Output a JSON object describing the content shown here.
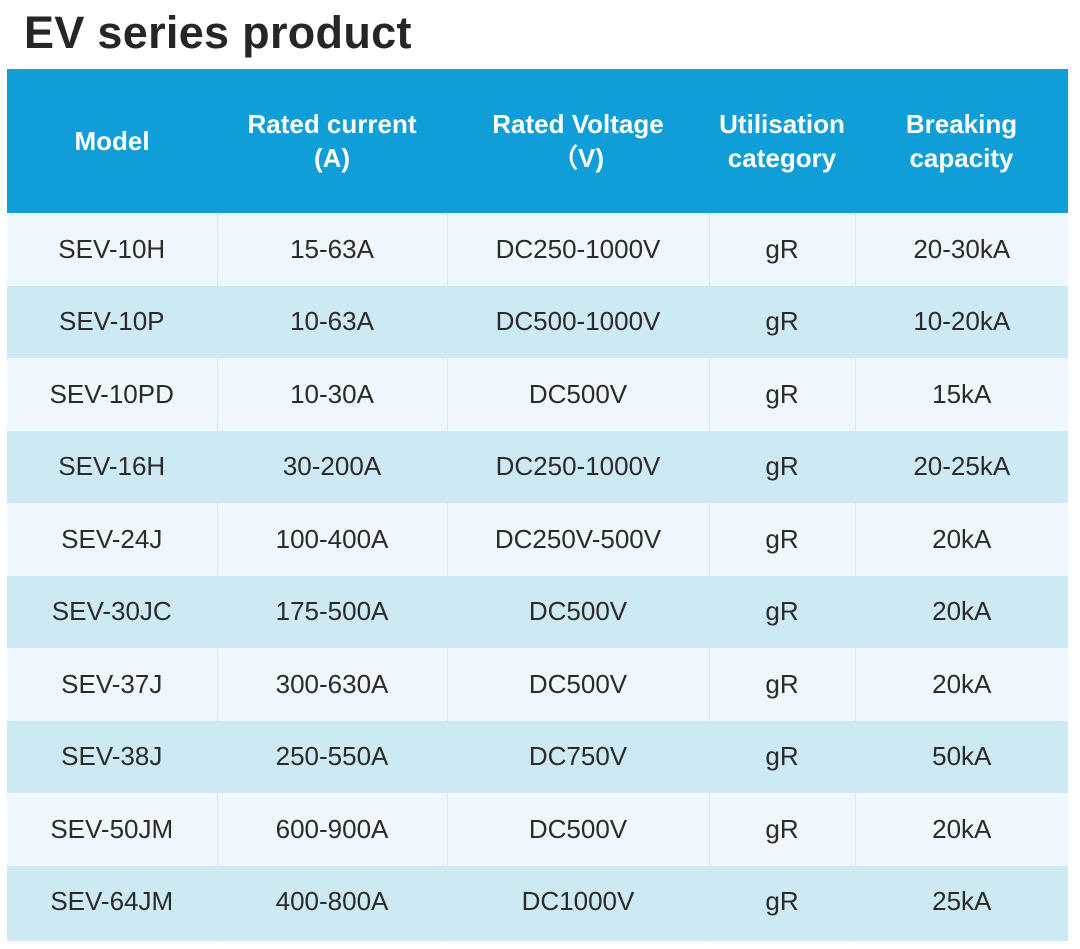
{
  "title": "EV series product",
  "table": {
    "headers": [
      {
        "line1": "Model",
        "line2": ""
      },
      {
        "line1": "Rated current",
        "line2": "(A)"
      },
      {
        "line1": "Rated Voltage",
        "line2": "（V)"
      },
      {
        "line1": "Utilisation",
        "line2": "category"
      },
      {
        "line1": "Breaking",
        "line2": "capacity"
      }
    ],
    "rows": [
      [
        "SEV-10H",
        "15-63A",
        "DC250-1000V",
        "gR",
        "20-30kA"
      ],
      [
        "SEV-10P",
        "10-63A",
        "DC500-1000V",
        "gR",
        "10-20kA"
      ],
      [
        "SEV-10PD",
        "10-30A",
        "DC500V",
        "gR",
        "15kA"
      ],
      [
        "SEV-16H",
        "30-200A",
        "DC250-1000V",
        "gR",
        "20-25kA"
      ],
      [
        "SEV-24J",
        "100-400A",
        "DC250V-500V",
        "gR",
        "20kA"
      ],
      [
        "SEV-30JC",
        "175-500A",
        "DC500V",
        "gR",
        "20kA"
      ],
      [
        "SEV-37J",
        "300-630A",
        "DC500V",
        "gR",
        "20kA"
      ],
      [
        "SEV-38J",
        "250-550A",
        "DC750V",
        "gR",
        "50kA"
      ],
      [
        "SEV-50JM",
        "600-900A",
        "DC500V",
        "gR",
        "20kA"
      ],
      [
        "SEV-64JM",
        "400-800A",
        "DC1000V",
        "gR",
        "25kA"
      ]
    ]
  },
  "colors": {
    "header_background": "#109ed8",
    "row_light": "#eef7fb",
    "row_dark": "#cde9f4",
    "title_text": "#262626"
  }
}
